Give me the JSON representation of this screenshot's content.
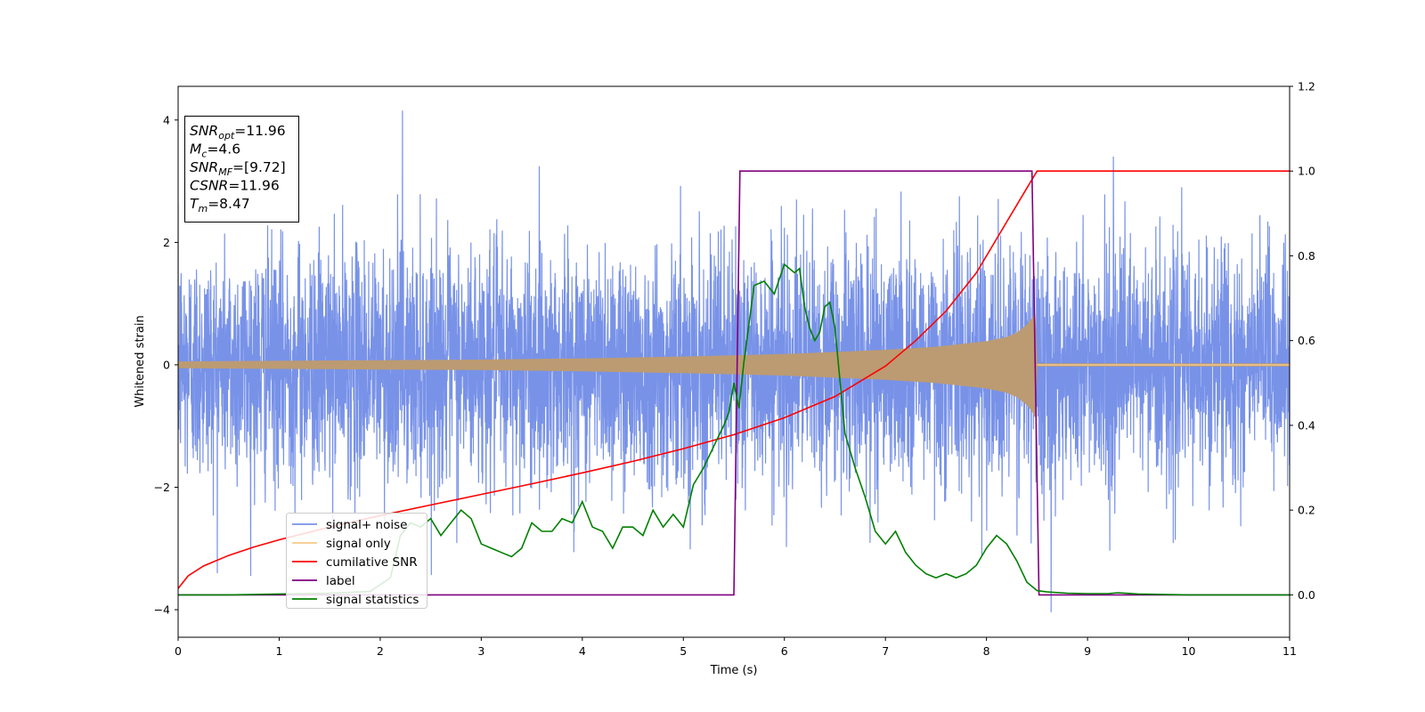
{
  "chart_data": {
    "type": "line",
    "xlabel": "Time (s)",
    "ylabel": "Whitened strain",
    "xlim": [
      0,
      11
    ],
    "ylim_left": [
      -4.45,
      4.55
    ],
    "ylim_right": [
      -0.1,
      1.2
    ],
    "x_ticks": [
      "0",
      "1",
      "2",
      "3",
      "4",
      "5",
      "6",
      "7",
      "8",
      "9",
      "10",
      "11"
    ],
    "y_left_ticks": [
      "−4",
      "−2",
      "0",
      "2",
      "4"
    ],
    "y_right_ticks": [
      "0.0",
      "0.2",
      "0.4",
      "0.6",
      "0.8",
      "1.0",
      "1.2"
    ],
    "grid": false,
    "legend_position": "lower-left",
    "annotation": {
      "lines": [
        {
          "base": "SNR",
          "sub": "opt",
          "value": "=11.96"
        },
        {
          "base": "M",
          "sub": "c",
          "value": "=4.6"
        },
        {
          "base": "SNR",
          "sub": "MF",
          "value": "=[9.72]"
        },
        {
          "base": "CSNR",
          "sub": "",
          "value": "=11.96"
        },
        {
          "base": "T",
          "sub": "m",
          "value": "=8.47"
        }
      ]
    },
    "series": [
      {
        "name": "signal+ noise",
        "axis": "left",
        "color": "#7892e8",
        "kind": "noise",
        "x_range": [
          0,
          11
        ],
        "typical_amplitude": 2.0,
        "max_value": 4.2,
        "min_value": -4.05
      },
      {
        "name": "signal only",
        "axis": "left",
        "color": "#bc9b72",
        "legend_color": "#f6c98a",
        "kind": "chirp-envelope",
        "envelope_x": [
          0,
          1,
          2,
          3,
          4,
          5,
          6,
          7,
          7.5,
          8,
          8.2,
          8.3,
          8.4,
          8.45,
          8.48,
          8.5,
          11
        ],
        "envelope_amplitude": [
          0.05,
          0.06,
          0.07,
          0.08,
          0.1,
          0.13,
          0.17,
          0.24,
          0.29,
          0.38,
          0.45,
          0.52,
          0.65,
          0.75,
          0.85,
          0.02,
          0.02
        ]
      },
      {
        "name": "cumilative SNR",
        "axis": "right",
        "color": "#ff0000",
        "x": [
          0,
          0.1,
          0.25,
          0.5,
          0.75,
          1,
          1.5,
          2,
          2.5,
          3,
          3.5,
          4,
          4.5,
          5,
          5.5,
          6,
          6.5,
          7,
          7.3,
          7.6,
          7.9,
          8.1,
          8.2,
          8.3,
          8.4,
          8.45,
          8.5,
          11
        ],
        "y": [
          0.015,
          0.045,
          0.068,
          0.093,
          0.113,
          0.13,
          0.16,
          0.187,
          0.212,
          0.237,
          0.262,
          0.288,
          0.315,
          0.345,
          0.378,
          0.418,
          0.468,
          0.54,
          0.6,
          0.67,
          0.76,
          0.84,
          0.88,
          0.92,
          0.96,
          0.98,
          1.0,
          1.0
        ]
      },
      {
        "name": "label",
        "axis": "right",
        "color": "#800080",
        "x": [
          0,
          5.5,
          5.56,
          8.45,
          8.52,
          11
        ],
        "y": [
          0,
          0,
          1,
          1,
          0,
          0
        ]
      },
      {
        "name": "signal statistics",
        "axis": "right",
        "color": "#008000",
        "x": [
          0,
          0.5,
          1,
          1.5,
          1.9,
          2.1,
          2.2,
          2.3,
          2.4,
          2.5,
          2.6,
          2.7,
          2.8,
          2.9,
          3.0,
          3.1,
          3.2,
          3.3,
          3.4,
          3.5,
          3.6,
          3.7,
          3.8,
          3.9,
          4.0,
          4.1,
          4.2,
          4.3,
          4.4,
          4.5,
          4.6,
          4.7,
          4.8,
          4.9,
          5.0,
          5.1,
          5.15,
          5.2,
          5.3,
          5.4,
          5.45,
          5.5,
          5.55,
          5.6,
          5.7,
          5.8,
          5.9,
          6.0,
          6.1,
          6.15,
          6.2,
          6.25,
          6.3,
          6.35,
          6.4,
          6.45,
          6.5,
          6.6,
          6.7,
          6.8,
          6.9,
          7.0,
          7.1,
          7.2,
          7.3,
          7.4,
          7.5,
          7.6,
          7.7,
          7.8,
          7.9,
          8.0,
          8.1,
          8.2,
          8.3,
          8.4,
          8.5,
          8.6,
          8.8,
          9.0,
          9.2,
          9.3,
          9.5,
          10,
          11
        ],
        "y": [
          0.0,
          0.0,
          0.002,
          0.004,
          0.008,
          0.04,
          0.14,
          0.17,
          0.16,
          0.18,
          0.14,
          0.17,
          0.2,
          0.18,
          0.12,
          0.11,
          0.1,
          0.09,
          0.11,
          0.17,
          0.15,
          0.15,
          0.18,
          0.17,
          0.22,
          0.16,
          0.15,
          0.11,
          0.16,
          0.16,
          0.14,
          0.2,
          0.16,
          0.19,
          0.16,
          0.26,
          0.28,
          0.3,
          0.35,
          0.4,
          0.43,
          0.5,
          0.44,
          0.55,
          0.73,
          0.74,
          0.71,
          0.78,
          0.76,
          0.77,
          0.68,
          0.63,
          0.6,
          0.62,
          0.68,
          0.69,
          0.63,
          0.38,
          0.3,
          0.23,
          0.15,
          0.12,
          0.15,
          0.1,
          0.07,
          0.05,
          0.04,
          0.05,
          0.04,
          0.05,
          0.07,
          0.11,
          0.14,
          0.12,
          0.08,
          0.03,
          0.01,
          0.007,
          0.004,
          0.003,
          0.003,
          0.005,
          0.002,
          0.0,
          0.0
        ]
      }
    ]
  }
}
